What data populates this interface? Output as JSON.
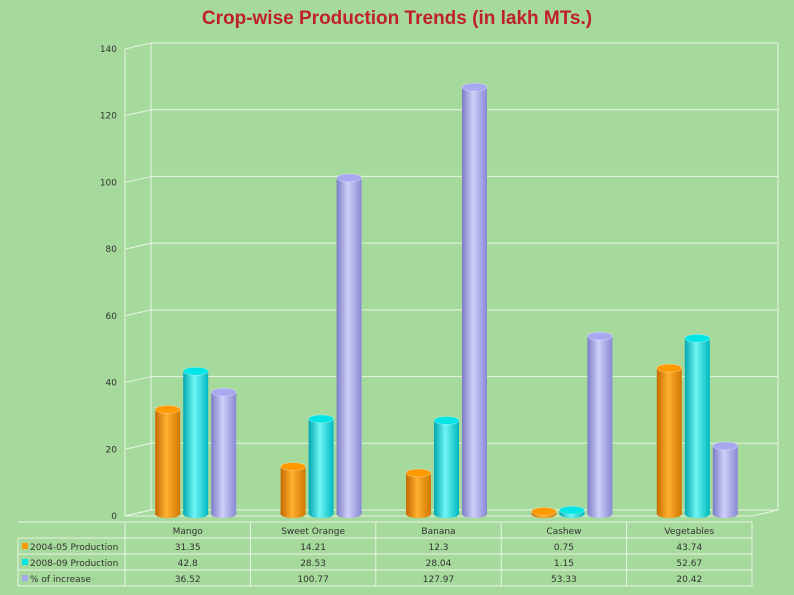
{
  "chart_data": {
    "type": "bar",
    "title": "Crop-wise Production Trends  (in lakh MTs.)",
    "categories": [
      "Mango",
      "Sweet Orange",
      "Banana",
      "Cashew",
      "Vegetables"
    ],
    "series": [
      {
        "name": "2004-05 Production",
        "color": "#ff9900",
        "values": [
          31.35,
          14.21,
          12.3,
          0.75,
          43.74
        ],
        "labels": [
          "31.35",
          "14.21",
          "12.3",
          "0.75",
          "43.74"
        ]
      },
      {
        "name": "2008-09 Production",
        "color": "#00e5e5",
        "values": [
          42.8,
          28.53,
          28.04,
          1.15,
          52.67
        ],
        "labels": [
          "42.8",
          "28.53",
          "28.04",
          "1.15",
          "52.67"
        ]
      },
      {
        "name": "% of increase",
        "color": "#a8a8f0",
        "values": [
          36.52,
          100.77,
          127.97,
          53.33,
          20.42
        ],
        "labels": [
          "36.52",
          "100.77",
          "127.97",
          "53.33",
          "20.42"
        ]
      }
    ],
    "yticks": [
      "0",
      "20",
      "40",
      "60",
      "80",
      "100",
      "120",
      "140"
    ],
    "ylim": [
      0,
      140
    ],
    "grid": true,
    "xlabel": "",
    "ylabel": "",
    "legend": "data table below chart"
  }
}
